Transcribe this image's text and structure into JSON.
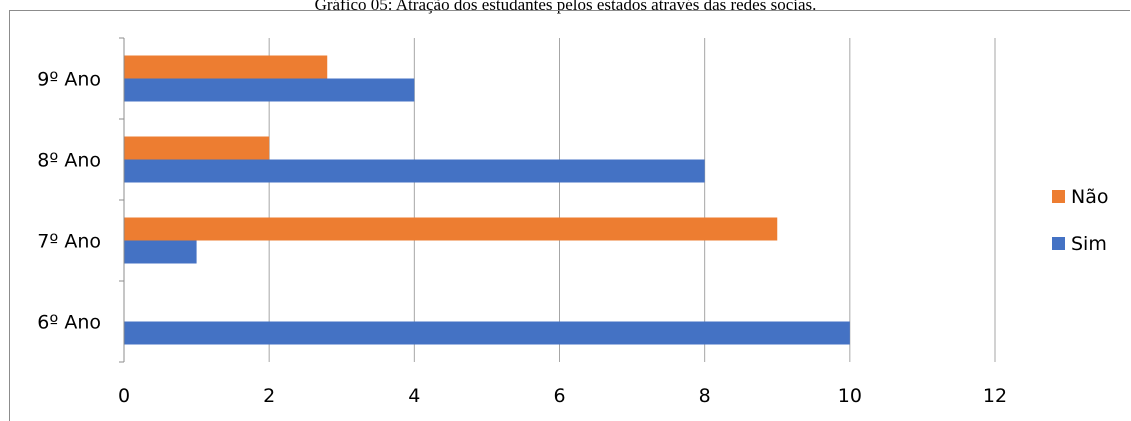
{
  "chart_data": {
    "type": "bar",
    "orientation": "horizontal",
    "title": "Gráfico 05: Atração dos estudantes pelos estados através das redes socias.",
    "categories": [
      "6º Ano",
      "7º Ano",
      "8º Ano",
      "9º Ano"
    ],
    "series": [
      {
        "name": "Sim",
        "color": "#4472c4",
        "values": [
          10,
          1,
          8,
          4
        ]
      },
      {
        "name": "Não",
        "color": "#ed7d31",
        "values": [
          0,
          9,
          2,
          2.8
        ]
      }
    ],
    "xlim": [
      0,
      12
    ],
    "xticks": [
      "0",
      "2",
      "4",
      "6",
      "8",
      "10",
      "12"
    ],
    "grid": true,
    "legend_position": "right",
    "legend_order": [
      "Não",
      "Sim"
    ]
  }
}
